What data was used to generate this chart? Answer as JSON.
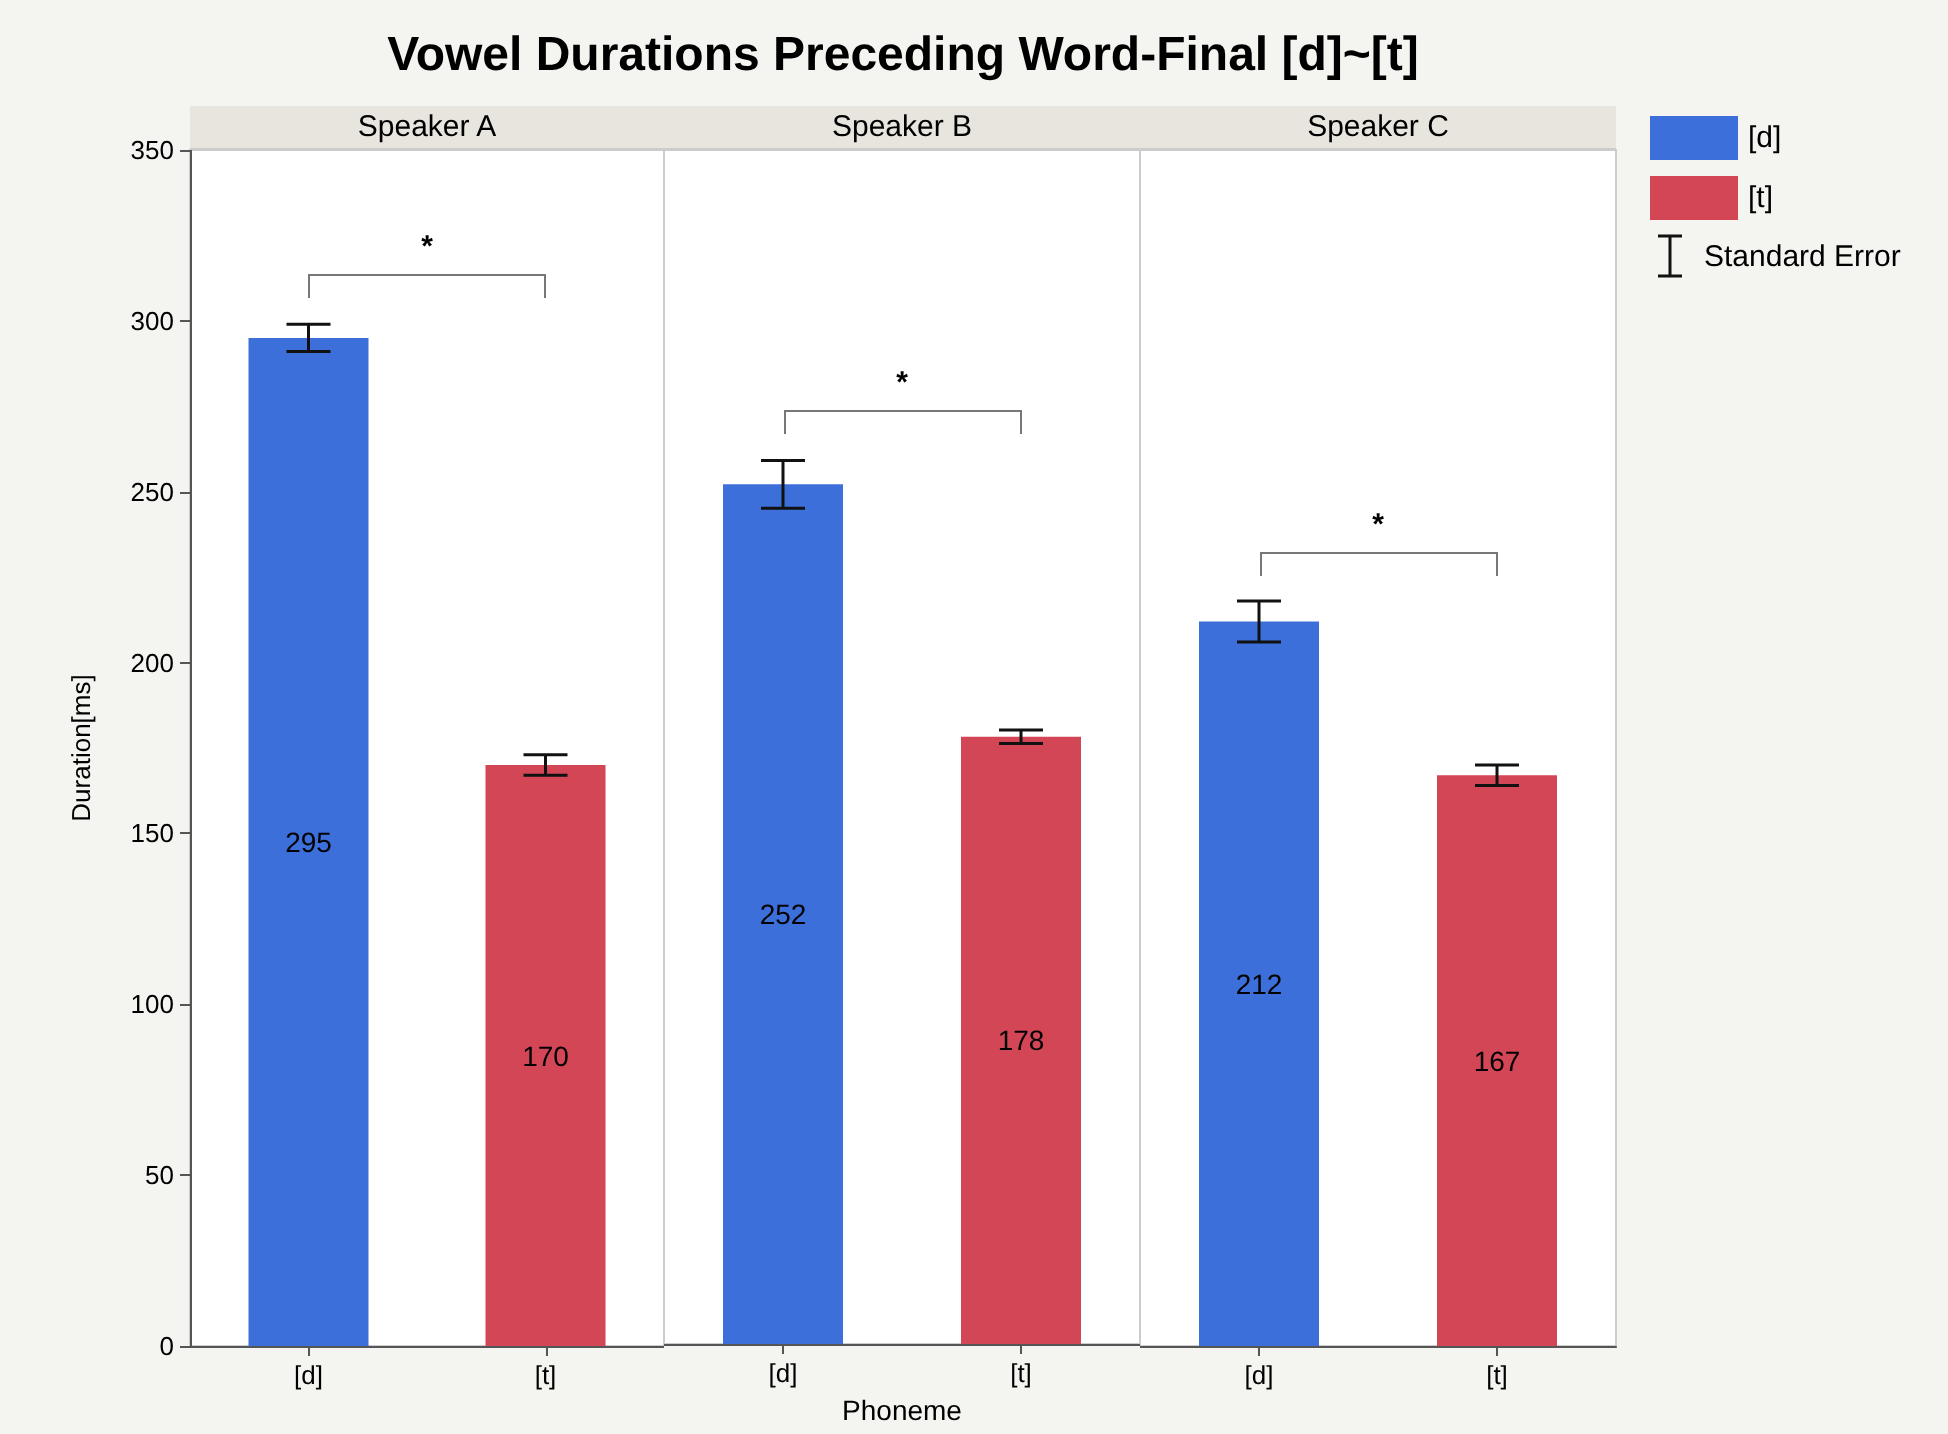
{
  "chart_data": [
    {
      "type": "bar",
      "title": "Vowel Durations Preceding Word-Final [d]~[t]",
      "subtitle": "Speaker A",
      "ylabel": "Duration[ms]",
      "categories": [
        "[d]",
        "[t]"
      ],
      "series": [
        {
          "color": "#3c6fd9",
          "values": [
            295,
            null
          ],
          "errors": [
            4,
            null
          ]
        },
        {
          "color": "#d24656",
          "values": [
            null,
            170
          ],
          "errors": [
            null,
            3
          ]
        }
      ],
      "ylim": [
        0,
        350
      ],
      "yticks": [
        0,
        50,
        100,
        150,
        200,
        250,
        300,
        350
      ],
      "data_labels": true,
      "grid": false,
      "legend": false,
      "annotations": [
        "*"
      ]
    },
    {
      "type": "bar",
      "subtitle": "Speaker B",
      "xlabel": "Phoneme",
      "categories": [
        "[d]",
        "[t]"
      ],
      "series": [
        {
          "color": "#3c6fd9",
          "values": [
            252,
            null
          ],
          "errors": [
            7,
            null
          ]
        },
        {
          "color": "#d24656",
          "values": [
            null,
            178
          ],
          "errors": [
            null,
            2
          ]
        }
      ],
      "ylim": [
        0,
        350
      ],
      "yticks": [
        0,
        50,
        100,
        150,
        200,
        250,
        300,
        350
      ],
      "tick_labels": "x",
      "data_labels": true,
      "grid": false,
      "legend": false,
      "annotations": [
        "*"
      ]
    },
    {
      "type": "bar",
      "subtitle": "Speaker C",
      "categories": [
        "[d]",
        "[t]"
      ],
      "series": [
        {
          "name": "[d]",
          "color": "#3c6fd9",
          "values": [
            212,
            null
          ],
          "errors": [
            6,
            null
          ]
        },
        {
          "name": "[t]",
          "color": "#d24656",
          "values": [
            null,
            167
          ],
          "errors": [
            null,
            3
          ]
        }
      ],
      "ylim": [
        0,
        350
      ],
      "yticks": [
        0,
        50,
        100,
        150,
        200,
        250,
        300,
        350
      ],
      "tick_labels": "x",
      "data_labels": true,
      "grid": false,
      "legend": "right",
      "annotations": [
        "*",
        "Standard Error"
      ]
    }
  ]
}
